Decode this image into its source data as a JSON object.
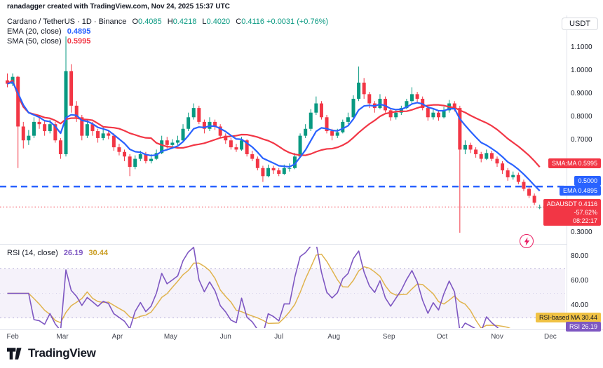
{
  "attribution": "ranadagger created with TradingView.com, Nov 24, 2025 15:37 UTC",
  "header": {
    "symbol_title": "Cardano / TetherUS · 1D · Binance",
    "ohlc": {
      "o_label": "O",
      "o": "0.4085",
      "h_label": "H",
      "h": "0.4218",
      "l_label": "L",
      "l": "0.4020",
      "c_label": "C",
      "c": "0.4116",
      "change": "+0.0031 (+0.76%)"
    },
    "ema_label": "EMA (20, close)",
    "ema_value": "0.4895",
    "sma_label": "SMA (50, close)",
    "sma_value": "0.5995",
    "currency_button": "USDT"
  },
  "price_axis": {
    "labels": [
      {
        "text": "1.1000",
        "price": 1.1
      },
      {
        "text": "1.0000",
        "price": 1.0
      },
      {
        "text": "0.9000",
        "price": 0.9
      },
      {
        "text": "0.8000",
        "price": 0.8
      },
      {
        "text": "0.7000",
        "price": 0.7
      },
      {
        "text": "0.3000",
        "price": 0.3
      }
    ]
  },
  "badges": {
    "sma": "SMA:MA 0.5995",
    "level": "0.5000",
    "ema": "EMA 0.4895",
    "last_line1": "ADAUSDT 0.4116",
    "last_line2": "-57.62%",
    "last_line3": "08:22:17"
  },
  "rsi": {
    "legend_label": "RSI (14, close)",
    "value": "26.19",
    "ma_value": "30.44",
    "badge_ma": "RSI-based MA 30.44",
    "badge_rsi": "RSI 26.19",
    "axis_labels": [
      {
        "text": "80.00",
        "value": 80
      },
      {
        "text": "60.00",
        "value": 60
      },
      {
        "text": "40.00",
        "value": 40
      }
    ]
  },
  "logo_text": "TradingView",
  "icons": {
    "bolt": "flash-publish-icon"
  },
  "chart_data": {
    "type": "candlestick",
    "title": "Cardano / TetherUS 1D Binance (ADAUSDT)",
    "x_start": "2025-01-28",
    "x_step_days": 3,
    "ylim": [
      0.28,
      1.19
    ],
    "last_price": 0.4116,
    "level_line": {
      "price": 0.5,
      "style": "dashed",
      "color": "#2962ff"
    },
    "colors": {
      "up": "#089981",
      "down": "#f23645",
      "ema": "#2962ff",
      "sma": "#f23645",
      "rsi": "#7e57c2",
      "rsi_ma": "#e0b34d"
    },
    "overlays": [
      {
        "name": "EMA 20",
        "color": "#2962ff",
        "period_candles": 7,
        "current": 0.4895
      },
      {
        "name": "SMA 50",
        "color": "#f23645",
        "period_candles": 17,
        "current": 0.5995
      }
    ],
    "months": [
      {
        "label": "Feb",
        "idx": 1.33
      },
      {
        "label": "Mar",
        "idx": 10.67
      },
      {
        "label": "Apr",
        "idx": 21
      },
      {
        "label": "May",
        "idx": 31
      },
      {
        "label": "Jun",
        "idx": 41.33
      },
      {
        "label": "Jul",
        "idx": 51.33
      },
      {
        "label": "Aug",
        "idx": 61.67
      },
      {
        "label": "Sep",
        "idx": 72
      },
      {
        "label": "Oct",
        "idx": 82
      },
      {
        "label": "Nov",
        "idx": 92.33
      },
      {
        "label": "Dec",
        "idx": 102.33
      }
    ],
    "candles": [
      [
        0.96,
        0.99,
        0.93,
        0.945
      ],
      [
        0.945,
        0.99,
        0.935,
        0.975
      ],
      [
        0.975,
        0.98,
        0.58,
        0.76
      ],
      [
        0.76,
        0.78,
        0.665,
        0.7
      ],
      [
        0.7,
        0.745,
        0.68,
        0.72
      ],
      [
        0.72,
        0.8,
        0.71,
        0.78
      ],
      [
        0.78,
        0.8,
        0.75,
        0.77
      ],
      [
        0.77,
        0.785,
        0.72,
        0.74
      ],
      [
        0.74,
        0.79,
        0.73,
        0.77
      ],
      [
        0.77,
        0.78,
        0.69,
        0.7
      ],
      [
        0.7,
        0.71,
        0.62,
        0.64
      ],
      [
        0.64,
        1.15,
        0.63,
        1.0
      ],
      [
        1.0,
        1.03,
        0.82,
        0.85
      ],
      [
        0.85,
        0.87,
        0.78,
        0.8
      ],
      [
        0.8,
        0.81,
        0.7,
        0.72
      ],
      [
        0.72,
        0.79,
        0.71,
        0.77
      ],
      [
        0.77,
        0.78,
        0.72,
        0.74
      ],
      [
        0.74,
        0.75,
        0.69,
        0.71
      ],
      [
        0.71,
        0.755,
        0.7,
        0.73
      ],
      [
        0.73,
        0.745,
        0.705,
        0.72
      ],
      [
        0.72,
        0.73,
        0.655,
        0.67
      ],
      [
        0.67,
        0.685,
        0.635,
        0.65
      ],
      [
        0.65,
        0.66,
        0.61,
        0.63
      ],
      [
        0.63,
        0.64,
        0.545,
        0.585
      ],
      [
        0.585,
        0.635,
        0.575,
        0.62
      ],
      [
        0.62,
        0.655,
        0.61,
        0.64
      ],
      [
        0.64,
        0.65,
        0.6,
        0.61
      ],
      [
        0.61,
        0.64,
        0.6,
        0.62
      ],
      [
        0.62,
        0.66,
        0.615,
        0.645
      ],
      [
        0.645,
        0.72,
        0.64,
        0.7
      ],
      [
        0.7,
        0.715,
        0.665,
        0.68
      ],
      [
        0.68,
        0.705,
        0.67,
        0.69
      ],
      [
        0.69,
        0.72,
        0.68,
        0.7
      ],
      [
        0.7,
        0.77,
        0.695,
        0.75
      ],
      [
        0.75,
        0.82,
        0.74,
        0.8
      ],
      [
        0.8,
        0.86,
        0.79,
        0.84
      ],
      [
        0.84,
        0.85,
        0.77,
        0.78
      ],
      [
        0.78,
        0.79,
        0.73,
        0.75
      ],
      [
        0.75,
        0.8,
        0.74,
        0.78
      ],
      [
        0.78,
        0.79,
        0.745,
        0.76
      ],
      [
        0.76,
        0.77,
        0.71,
        0.72
      ],
      [
        0.72,
        0.73,
        0.685,
        0.7
      ],
      [
        0.7,
        0.71,
        0.66,
        0.67
      ],
      [
        0.67,
        0.685,
        0.65,
        0.66
      ],
      [
        0.66,
        0.715,
        0.655,
        0.7
      ],
      [
        0.7,
        0.705,
        0.63,
        0.64
      ],
      [
        0.64,
        0.655,
        0.61,
        0.62
      ],
      [
        0.62,
        0.63,
        0.57,
        0.58
      ],
      [
        0.58,
        0.59,
        0.52,
        0.545
      ],
      [
        0.545,
        0.595,
        0.54,
        0.58
      ],
      [
        0.58,
        0.59,
        0.555,
        0.57
      ],
      [
        0.57,
        0.58,
        0.545,
        0.555
      ],
      [
        0.555,
        0.595,
        0.55,
        0.58
      ],
      [
        0.58,
        0.6,
        0.565,
        0.58
      ],
      [
        0.58,
        0.645,
        0.575,
        0.63
      ],
      [
        0.63,
        0.73,
        0.625,
        0.72
      ],
      [
        0.72,
        0.77,
        0.71,
        0.75
      ],
      [
        0.75,
        0.835,
        0.74,
        0.82
      ],
      [
        0.82,
        0.89,
        0.81,
        0.86
      ],
      [
        0.86,
        0.87,
        0.79,
        0.8
      ],
      [
        0.8,
        0.81,
        0.73,
        0.74
      ],
      [
        0.74,
        0.75,
        0.7,
        0.72
      ],
      [
        0.72,
        0.75,
        0.71,
        0.735
      ],
      [
        0.735,
        0.79,
        0.73,
        0.78
      ],
      [
        0.78,
        0.82,
        0.77,
        0.8
      ],
      [
        0.8,
        0.895,
        0.795,
        0.88
      ],
      [
        0.88,
        1.02,
        0.87,
        0.95
      ],
      [
        0.95,
        0.97,
        0.88,
        0.9
      ],
      [
        0.9,
        0.91,
        0.84,
        0.86
      ],
      [
        0.86,
        0.87,
        0.82,
        0.84
      ],
      [
        0.84,
        0.9,
        0.835,
        0.88
      ],
      [
        0.88,
        0.89,
        0.82,
        0.83
      ],
      [
        0.83,
        0.84,
        0.785,
        0.8
      ],
      [
        0.8,
        0.835,
        0.79,
        0.82
      ],
      [
        0.82,
        0.85,
        0.81,
        0.84
      ],
      [
        0.84,
        0.88,
        0.835,
        0.87
      ],
      [
        0.87,
        0.93,
        0.86,
        0.9
      ],
      [
        0.9,
        0.91,
        0.86,
        0.88
      ],
      [
        0.88,
        0.89,
        0.83,
        0.84
      ],
      [
        0.84,
        0.85,
        0.785,
        0.8
      ],
      [
        0.8,
        0.835,
        0.79,
        0.82
      ],
      [
        0.82,
        0.83,
        0.785,
        0.8
      ],
      [
        0.8,
        0.845,
        0.795,
        0.83
      ],
      [
        0.83,
        0.875,
        0.82,
        0.86
      ],
      [
        0.86,
        0.87,
        0.825,
        0.84
      ],
      [
        0.84,
        0.85,
        0.3,
        0.66
      ],
      [
        0.66,
        0.7,
        0.64,
        0.68
      ],
      [
        0.68,
        0.69,
        0.645,
        0.66
      ],
      [
        0.66,
        0.67,
        0.625,
        0.64
      ],
      [
        0.64,
        0.65,
        0.605,
        0.62
      ],
      [
        0.62,
        0.66,
        0.615,
        0.645
      ],
      [
        0.645,
        0.655,
        0.61,
        0.62
      ],
      [
        0.62,
        0.63,
        0.585,
        0.6
      ],
      [
        0.6,
        0.61,
        0.555,
        0.57
      ],
      [
        0.57,
        0.58,
        0.525,
        0.54
      ],
      [
        0.54,
        0.565,
        0.53,
        0.55
      ],
      [
        0.55,
        0.56,
        0.51,
        0.52
      ],
      [
        0.52,
        0.53,
        0.48,
        0.49
      ],
      [
        0.49,
        0.5,
        0.45,
        0.46
      ],
      [
        0.46,
        0.47,
        0.42,
        0.43
      ],
      [
        0.4085,
        0.4218,
        0.402,
        0.4116
      ]
    ],
    "rsi_panel": {
      "type": "line",
      "period_candles": 5,
      "current": 26.19,
      "ma_current": 30.44,
      "bands": [
        30,
        70
      ],
      "axis": [
        80,
        60,
        40
      ],
      "legend_pos": "top-left"
    }
  }
}
